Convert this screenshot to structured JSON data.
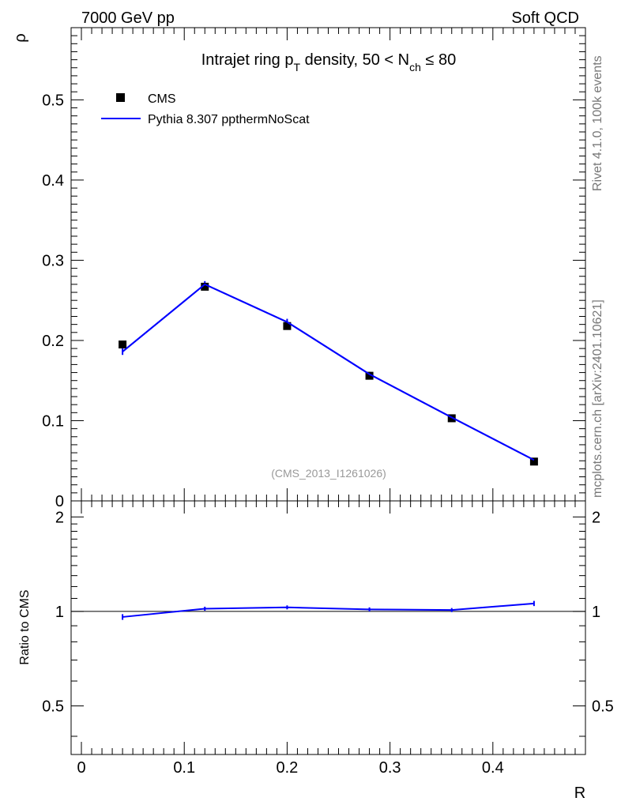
{
  "header": {
    "left": "7000 GeV pp",
    "right": "Soft QCD"
  },
  "side_labels": {
    "rivet": "Rivet 4.1.0,  100k events",
    "mcplots": "mcplots.cern.ch [arXiv:2401.10621]"
  },
  "chart_data": {
    "type": "line",
    "title": {
      "prefix": "Intrajet ring p",
      "sub_T": "T",
      "middle": " density, 50 < N",
      "sub_ch": "ch",
      "suffix": " ≤ 80"
    },
    "watermark": "(CMS_2013_I1261026)",
    "xlabel": "R",
    "xlim": [
      -0.01,
      0.49
    ],
    "x_ticks": [
      0,
      0.1,
      0.2,
      0.3,
      0.4
    ],
    "x_tick_labels": [
      "0",
      "0.1",
      "0.2",
      "0.3",
      "0.4"
    ],
    "main": {
      "ylabel": "ρ",
      "ylim": [
        0,
        0.59
      ],
      "y_ticks": [
        0,
        0.1,
        0.2,
        0.3,
        0.4,
        0.5
      ],
      "y_tick_labels": [
        "0",
        "0.1",
        "0.2",
        "0.3",
        "0.4",
        "0.5"
      ]
    },
    "ratio": {
      "ylabel": "Ratio to CMS",
      "ylim": [
        0.35,
        2.25
      ],
      "reference": 1,
      "y_ticks": [
        0.5,
        1,
        2
      ],
      "y_tick_labels": [
        "0.5",
        "1",
        "2"
      ]
    },
    "legend": {
      "position": "top-left",
      "entries": [
        "CMS",
        "Pythia 8.307 ppthermNoScat"
      ]
    },
    "x": [
      0.04,
      0.12,
      0.2,
      0.28,
      0.36,
      0.44
    ],
    "series": [
      {
        "name": "CMS",
        "style": "markers",
        "color": "#000000",
        "values": [
          0.195,
          0.267,
          0.218,
          0.156,
          0.103,
          0.049
        ]
      },
      {
        "name": "Pythia 8.307 ppthermNoScat",
        "style": "line",
        "color": "#0000ff",
        "values": [
          0.186,
          0.27,
          0.223,
          0.158,
          0.104,
          0.051
        ],
        "errors": [
          0.004,
          0.004,
          0.004,
          0.003,
          0.002,
          0.002
        ],
        "ratio": [
          0.96,
          1.02,
          1.03,
          1.015,
          1.01,
          1.06
        ],
        "ratio_errors": [
          0.02,
          0.015,
          0.015,
          0.015,
          0.015,
          0.02
        ]
      }
    ]
  }
}
